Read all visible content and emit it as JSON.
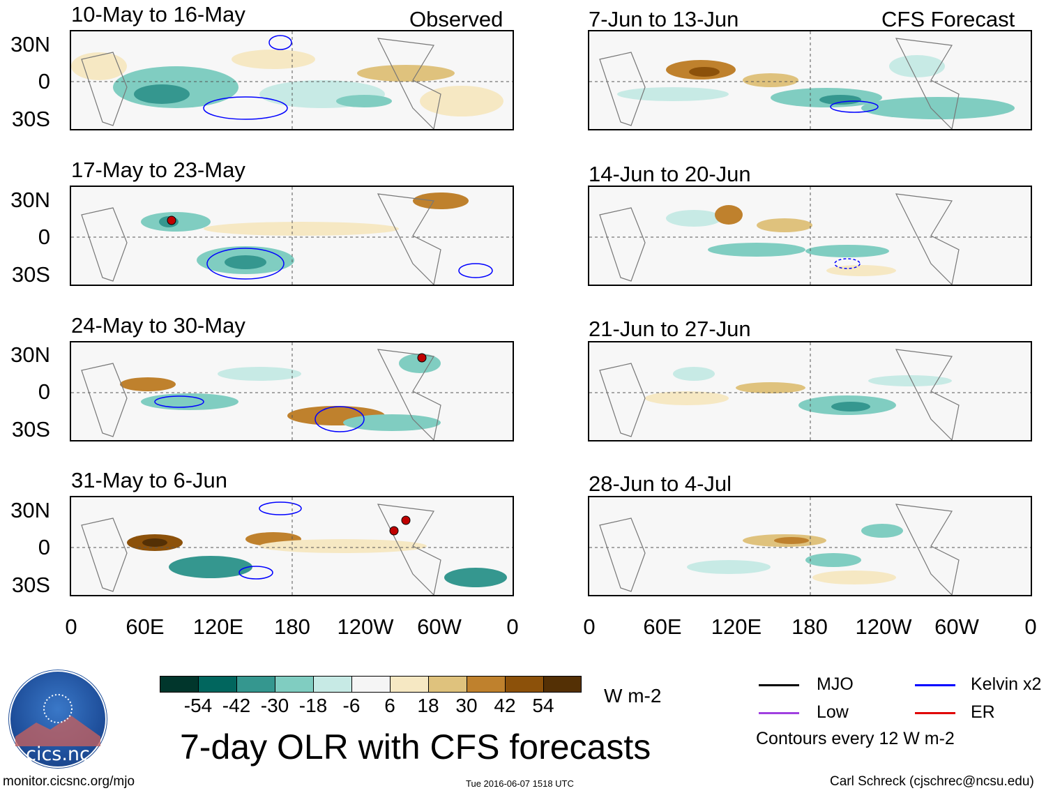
{
  "observed_label": "Observed",
  "forecast_label": "CFS Forecast",
  "lat_labels": [
    "30N",
    "0",
    "30S"
  ],
  "lon_labels": [
    "0",
    "60E",
    "120E",
    "180",
    "120W",
    "60W",
    "0"
  ],
  "observed_panels": [
    {
      "title": "10-May to 16-May"
    },
    {
      "title": "17-May to 23-May"
    },
    {
      "title": "24-May to 30-May"
    },
    {
      "title": "31-May to 6-Jun"
    }
  ],
  "forecast_panels": [
    {
      "title": "7-Jun to 13-Jun"
    },
    {
      "title": "14-Jun to 20-Jun"
    },
    {
      "title": "21-Jun to 27-Jun"
    },
    {
      "title": "28-Jun to 4-Jul"
    }
  ],
  "colorbar": {
    "ticks": [
      "-54",
      "-42",
      "-30",
      "-18",
      "-6",
      "6",
      "18",
      "30",
      "42",
      "54"
    ],
    "unit": "W m-2",
    "colors": [
      "#01362c",
      "#01665e",
      "#35978f",
      "#80cdc1",
      "#c7eae5",
      "#f5f5f5",
      "#f6e8c3",
      "#dfc27d",
      "#bf812d",
      "#8c510a",
      "#543005"
    ]
  },
  "title": "7-day OLR with CFS forecasts",
  "key": {
    "mjo": {
      "label": "MJO",
      "color": "#000000"
    },
    "kelvin": {
      "label": "Kelvin x2",
      "color": "#0000ff"
    },
    "low": {
      "label": "Low",
      "color": "#a040e0"
    },
    "er": {
      "label": "ER",
      "color": "#e00000"
    },
    "contours": "Contours every 12 W m-2"
  },
  "logo_text": "cics.nc",
  "footer": {
    "url": "monitor.cicsnc.org/mjo",
    "timestamp": "Tue 2016-06-07 1518 UTC",
    "author": "Carl Schreck (cjschrec@ncsu.edu)"
  }
}
